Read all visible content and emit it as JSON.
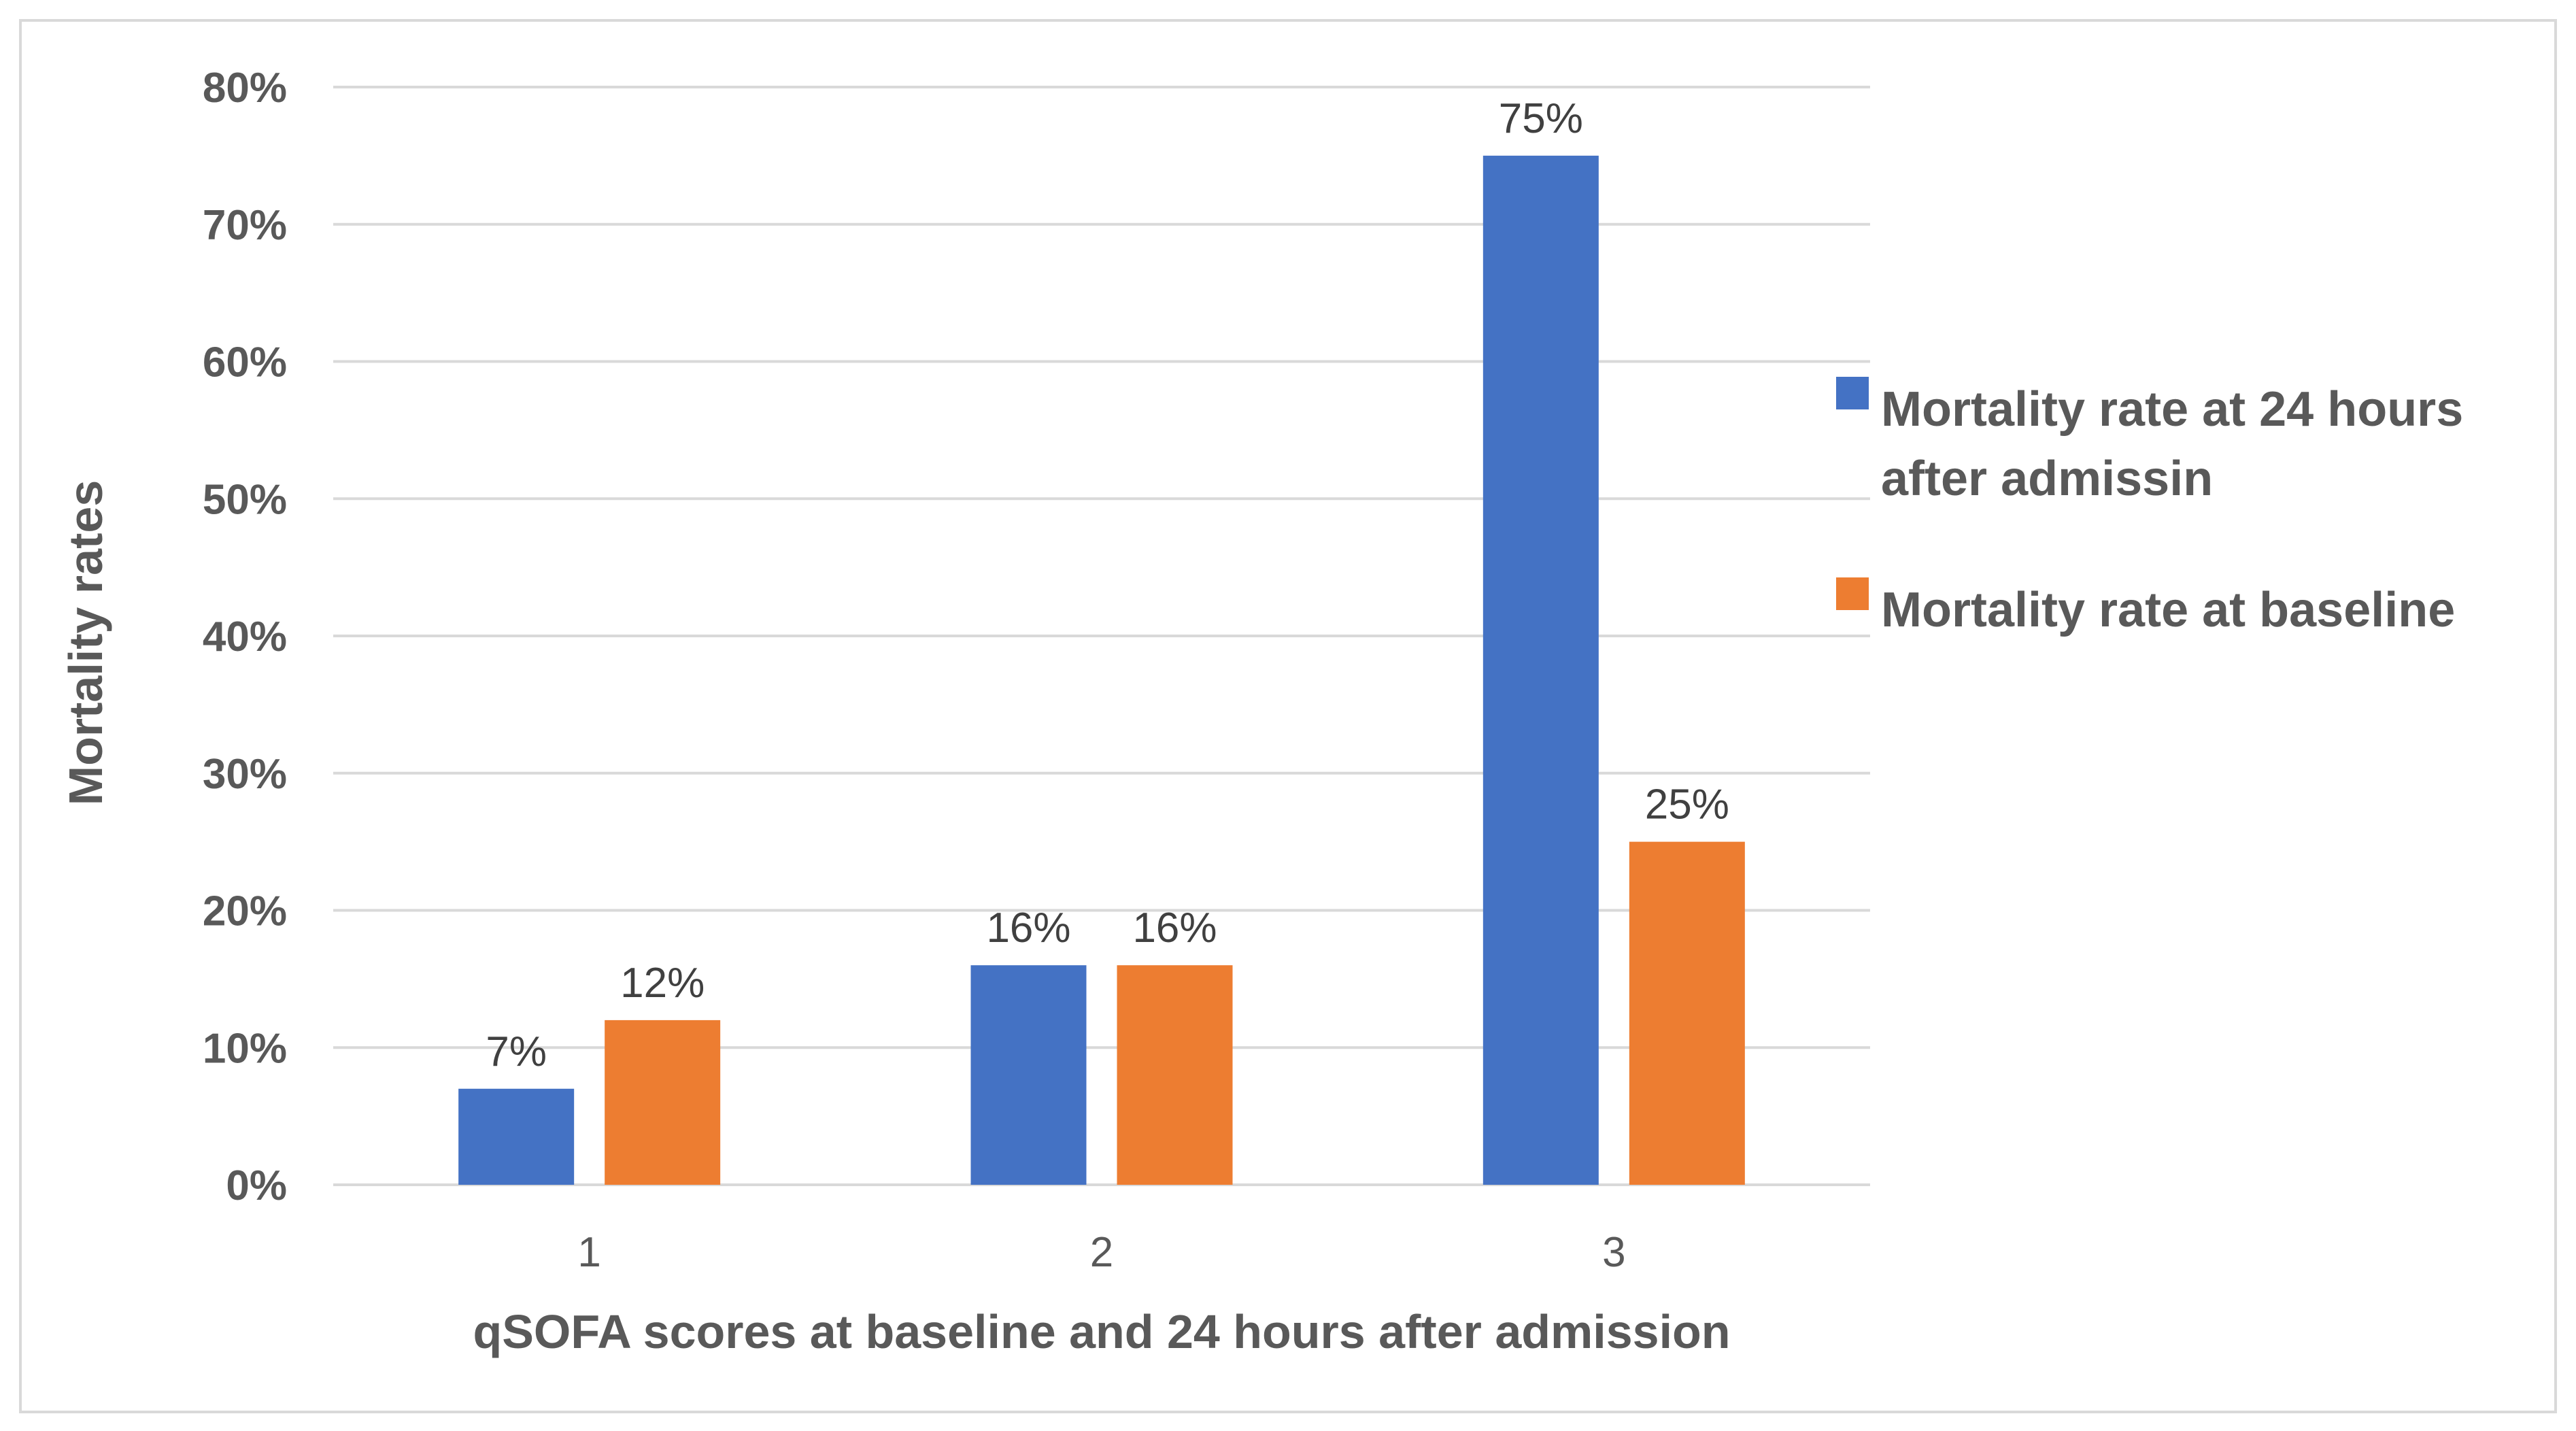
{
  "chart_data": {
    "type": "bar",
    "title": "",
    "categories": [
      "1",
      "2",
      "3"
    ],
    "series": [
      {
        "name": "Mortality rate at  24 hours after admissin",
        "legend_lines": [
          "Mortality rate at  24 hours",
          "after admissin"
        ],
        "color": "#4472c4",
        "values": [
          7,
          16,
          75
        ],
        "labels": [
          "7%",
          "16%",
          "75%"
        ]
      },
      {
        "name": "Mortality rate at baseline",
        "legend_lines": [
          "Mortality rate at baseline"
        ],
        "color": "#ed7d31",
        "values": [
          12,
          16,
          25
        ],
        "labels": [
          "12%",
          "16%",
          "25%"
        ]
      }
    ],
    "xlabel": "qSOFA scores at baseline and 24 hours after admission",
    "ylabel": "Mortality rates",
    "ylim": [
      0,
      80
    ],
    "yticks": [
      0,
      10,
      20,
      30,
      40,
      50,
      60,
      70,
      80
    ],
    "ytick_labels": [
      "0%",
      "10%",
      "20%",
      "30%",
      "40%",
      "50%",
      "60%",
      "70%",
      "80%"
    ],
    "grid": true,
    "gridline_color": "#d9d9d9",
    "legend_position": "right"
  }
}
